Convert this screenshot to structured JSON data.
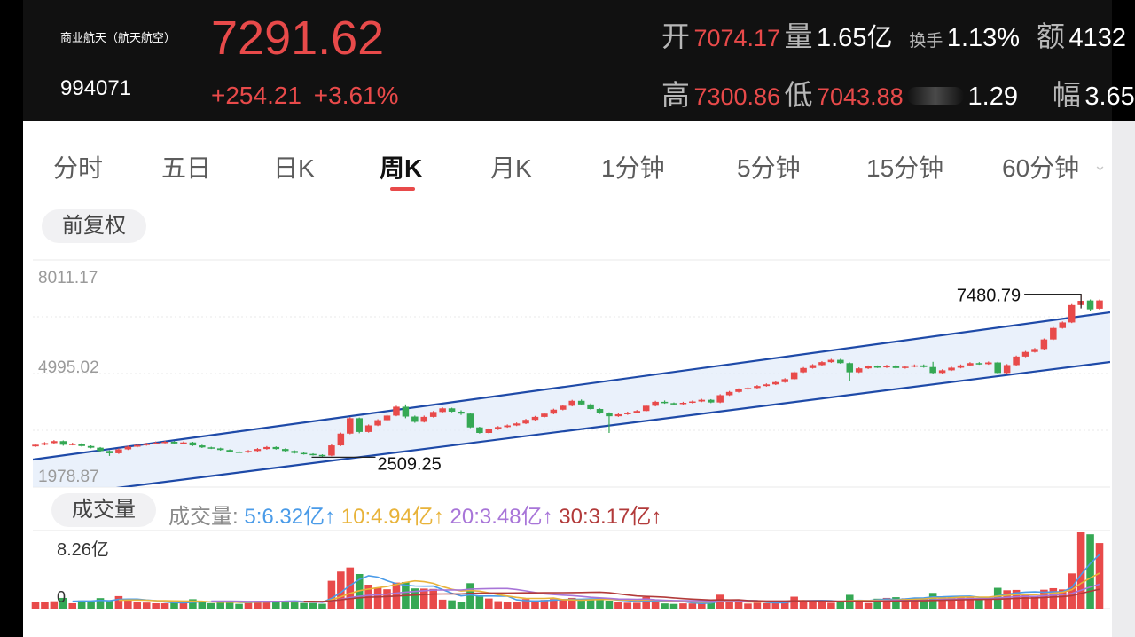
{
  "header": {
    "name": "商业航天（航天航空）",
    "code": "994071",
    "price": "7291.62",
    "change": "+254.21",
    "change_pct": "+3.61%",
    "open_label": "开",
    "open": "7074.17",
    "volume_label": "量",
    "volume": "1.65亿",
    "turnover_label": "换手",
    "turnover": "1.13%",
    "amount_label": "额",
    "amount": "4132",
    "high_label": "高",
    "high": "7300.86",
    "low_label": "低",
    "low": "7043.88",
    "ratio": "1.29",
    "amplitude_label": "幅",
    "amplitude": "3.65"
  },
  "tabs": [
    {
      "label": "分时",
      "active": false
    },
    {
      "label": "五日",
      "active": false
    },
    {
      "label": "日K",
      "active": false
    },
    {
      "label": "周K",
      "active": true
    },
    {
      "label": "月K",
      "active": false
    },
    {
      "label": "1分钟",
      "active": false
    },
    {
      "label": "5分钟",
      "active": false
    },
    {
      "label": "15分钟",
      "active": false
    },
    {
      "label": "60分钟",
      "active": false
    }
  ],
  "colors": {
    "up": "#e84a4a",
    "down": "#35a854",
    "channel": "#1e4aa8",
    "channel_fill": "#e3ecf9"
  },
  "kline": {
    "adjust_label": "前复权",
    "y_ticks": [
      "8011.17",
      "4995.02",
      "1978.87"
    ],
    "ymin": 1978.87,
    "ymax": 8011.17,
    "annotations": {
      "max_label": "7480.79",
      "min_label": "2509.25"
    },
    "candles": [
      {
        "o": 2840,
        "c": 2890,
        "h": 2920,
        "l": 2820
      },
      {
        "o": 2890,
        "c": 2940,
        "h": 2970,
        "l": 2870
      },
      {
        "o": 2940,
        "c": 3000,
        "h": 3030,
        "l": 2920
      },
      {
        "o": 3000,
        "c": 2890,
        "h": 3020,
        "l": 2860
      },
      {
        "o": 2890,
        "c": 2920,
        "h": 2950,
        "l": 2870
      },
      {
        "o": 2920,
        "c": 2850,
        "h": 2940,
        "l": 2830
      },
      {
        "o": 2850,
        "c": 2800,
        "h": 2870,
        "l": 2780
      },
      {
        "o": 2800,
        "c": 2700,
        "h": 2820,
        "l": 2680
      },
      {
        "o": 2700,
        "c": 2630,
        "h": 2720,
        "l": 2550
      },
      {
        "o": 2630,
        "c": 2750,
        "h": 2780,
        "l": 2610
      },
      {
        "o": 2750,
        "c": 2830,
        "h": 2860,
        "l": 2730
      },
      {
        "o": 2830,
        "c": 2880,
        "h": 2910,
        "l": 2810
      },
      {
        "o": 2880,
        "c": 2920,
        "h": 2950,
        "l": 2860
      },
      {
        "o": 2920,
        "c": 2950,
        "h": 2990,
        "l": 2900
      },
      {
        "o": 2950,
        "c": 2980,
        "h": 3010,
        "l": 2930
      },
      {
        "o": 2980,
        "c": 2930,
        "h": 3000,
        "l": 2910
      },
      {
        "o": 2930,
        "c": 2960,
        "h": 2990,
        "l": 2910
      },
      {
        "o": 2960,
        "c": 2870,
        "h": 2980,
        "l": 2850
      },
      {
        "o": 2870,
        "c": 2810,
        "h": 2890,
        "l": 2790
      },
      {
        "o": 2810,
        "c": 2780,
        "h": 2830,
        "l": 2760
      },
      {
        "o": 2780,
        "c": 2730,
        "h": 2800,
        "l": 2710
      },
      {
        "o": 2730,
        "c": 2680,
        "h": 2750,
        "l": 2660
      },
      {
        "o": 2680,
        "c": 2660,
        "h": 2700,
        "l": 2640
      },
      {
        "o": 2660,
        "c": 2700,
        "h": 2730,
        "l": 2640
      },
      {
        "o": 2700,
        "c": 2760,
        "h": 2790,
        "l": 2680
      },
      {
        "o": 2760,
        "c": 2820,
        "h": 2850,
        "l": 2740
      },
      {
        "o": 2820,
        "c": 2760,
        "h": 2840,
        "l": 2740
      },
      {
        "o": 2760,
        "c": 2700,
        "h": 2780,
        "l": 2680
      },
      {
        "o": 2700,
        "c": 2640,
        "h": 2720,
        "l": 2620
      },
      {
        "o": 2640,
        "c": 2610,
        "h": 2660,
        "l": 2590
      },
      {
        "o": 2610,
        "c": 2580,
        "h": 2630,
        "l": 2560
      },
      {
        "o": 2580,
        "c": 2560,
        "h": 2600,
        "l": 2509.25
      },
      {
        "o": 2560,
        "c": 2870,
        "h": 2900,
        "l": 2540
      },
      {
        "o": 2870,
        "c": 3230,
        "h": 3260,
        "l": 2850
      },
      {
        "o": 3230,
        "c": 3700,
        "h": 3730,
        "l": 3210
      },
      {
        "o": 3700,
        "c": 3280,
        "h": 3720,
        "l": 3240
      },
      {
        "o": 3280,
        "c": 3480,
        "h": 3510,
        "l": 3260
      },
      {
        "o": 3480,
        "c": 3640,
        "h": 3670,
        "l": 3460
      },
      {
        "o": 3640,
        "c": 3780,
        "h": 3810,
        "l": 3620
      },
      {
        "o": 3780,
        "c": 4050,
        "h": 4080,
        "l": 3760
      },
      {
        "o": 4050,
        "c": 3750,
        "h": 4120,
        "l": 3700
      },
      {
        "o": 3750,
        "c": 3590,
        "h": 3780,
        "l": 3560
      },
      {
        "o": 3590,
        "c": 3740,
        "h": 3780,
        "l": 3570
      },
      {
        "o": 3740,
        "c": 3890,
        "h": 3920,
        "l": 3720
      },
      {
        "o": 3890,
        "c": 4000,
        "h": 4030,
        "l": 3870
      },
      {
        "o": 4000,
        "c": 3900,
        "h": 4020,
        "l": 3880
      },
      {
        "o": 3900,
        "c": 3840,
        "h": 3940,
        "l": 3800
      },
      {
        "o": 3840,
        "c": 3420,
        "h": 3860,
        "l": 3400
      },
      {
        "o": 3420,
        "c": 3250,
        "h": 3440,
        "l": 3230
      },
      {
        "o": 3250,
        "c": 3360,
        "h": 3390,
        "l": 3230
      },
      {
        "o": 3360,
        "c": 3430,
        "h": 3460,
        "l": 3340
      },
      {
        "o": 3430,
        "c": 3480,
        "h": 3510,
        "l": 3410
      },
      {
        "o": 3480,
        "c": 3540,
        "h": 3570,
        "l": 3460
      },
      {
        "o": 3540,
        "c": 3650,
        "h": 3680,
        "l": 3520
      },
      {
        "o": 3650,
        "c": 3740,
        "h": 3770,
        "l": 3630
      },
      {
        "o": 3740,
        "c": 3840,
        "h": 3870,
        "l": 3720
      },
      {
        "o": 3840,
        "c": 3960,
        "h": 3990,
        "l": 3820
      },
      {
        "o": 3960,
        "c": 4080,
        "h": 4110,
        "l": 3940
      },
      {
        "o": 4080,
        "c": 4230,
        "h": 4260,
        "l": 4060
      },
      {
        "o": 4230,
        "c": 4120,
        "h": 4270,
        "l": 4100
      },
      {
        "o": 4120,
        "c": 3980,
        "h": 4150,
        "l": 3960
      },
      {
        "o": 3980,
        "c": 3850,
        "h": 4000,
        "l": 3830
      },
      {
        "o": 3850,
        "c": 3760,
        "h": 3880,
        "l": 3250
      },
      {
        "o": 3760,
        "c": 3820,
        "h": 3850,
        "l": 3740
      },
      {
        "o": 3820,
        "c": 3870,
        "h": 3900,
        "l": 3800
      },
      {
        "o": 3870,
        "c": 3920,
        "h": 3950,
        "l": 3850
      },
      {
        "o": 3920,
        "c": 4080,
        "h": 4110,
        "l": 3900
      },
      {
        "o": 4080,
        "c": 4200,
        "h": 4230,
        "l": 4060
      },
      {
        "o": 4200,
        "c": 4160,
        "h": 4240,
        "l": 4140
      },
      {
        "o": 4160,
        "c": 4130,
        "h": 4180,
        "l": 4110
      },
      {
        "o": 4130,
        "c": 4170,
        "h": 4200,
        "l": 4110
      },
      {
        "o": 4170,
        "c": 4210,
        "h": 4240,
        "l": 4150
      },
      {
        "o": 4210,
        "c": 4260,
        "h": 4290,
        "l": 4190
      },
      {
        "o": 4260,
        "c": 4180,
        "h": 4280,
        "l": 4160
      },
      {
        "o": 4180,
        "c": 4400,
        "h": 4430,
        "l": 4160
      },
      {
        "o": 4400,
        "c": 4500,
        "h": 4530,
        "l": 4380
      },
      {
        "o": 4500,
        "c": 4580,
        "h": 4610,
        "l": 4480
      },
      {
        "o": 4580,
        "c": 4620,
        "h": 4650,
        "l": 4560
      },
      {
        "o": 4620,
        "c": 4680,
        "h": 4710,
        "l": 4600
      },
      {
        "o": 4680,
        "c": 4730,
        "h": 4760,
        "l": 4660
      },
      {
        "o": 4730,
        "c": 4800,
        "h": 4830,
        "l": 4710
      },
      {
        "o": 4800,
        "c": 4890,
        "h": 4920,
        "l": 4780
      },
      {
        "o": 4890,
        "c": 5100,
        "h": 5130,
        "l": 4870
      },
      {
        "o": 5100,
        "c": 5230,
        "h": 5260,
        "l": 5080
      },
      {
        "o": 5230,
        "c": 5320,
        "h": 5350,
        "l": 5210
      },
      {
        "o": 5320,
        "c": 5410,
        "h": 5440,
        "l": 5300
      },
      {
        "o": 5410,
        "c": 5480,
        "h": 5510,
        "l": 5390
      },
      {
        "o": 5480,
        "c": 5380,
        "h": 5510,
        "l": 5360
      },
      {
        "o": 5380,
        "c": 5100,
        "h": 5400,
        "l": 4830
      },
      {
        "o": 5100,
        "c": 5220,
        "h": 5250,
        "l": 5080
      },
      {
        "o": 5220,
        "c": 5280,
        "h": 5310,
        "l": 5200
      },
      {
        "o": 5280,
        "c": 5250,
        "h": 5310,
        "l": 5230
      },
      {
        "o": 5250,
        "c": 5300,
        "h": 5330,
        "l": 5230
      },
      {
        "o": 5300,
        "c": 5230,
        "h": 5330,
        "l": 5210
      },
      {
        "o": 5230,
        "c": 5270,
        "h": 5300,
        "l": 5210
      },
      {
        "o": 5270,
        "c": 5310,
        "h": 5340,
        "l": 5250
      },
      {
        "o": 5310,
        "c": 5260,
        "h": 5340,
        "l": 5240
      },
      {
        "o": 5260,
        "c": 5080,
        "h": 5420,
        "l": 5060
      },
      {
        "o": 5080,
        "c": 5160,
        "h": 5190,
        "l": 5060
      },
      {
        "o": 5160,
        "c": 5240,
        "h": 5270,
        "l": 5140
      },
      {
        "o": 5240,
        "c": 5310,
        "h": 5340,
        "l": 5220
      },
      {
        "o": 5310,
        "c": 5380,
        "h": 5410,
        "l": 5290
      },
      {
        "o": 5380,
        "c": 5350,
        "h": 5410,
        "l": 5330
      },
      {
        "o": 5350,
        "c": 5400,
        "h": 5430,
        "l": 5330
      },
      {
        "o": 5400,
        "c": 5080,
        "h": 5420,
        "l": 5060
      },
      {
        "o": 5080,
        "c": 5320,
        "h": 5350,
        "l": 5060
      },
      {
        "o": 5320,
        "c": 5580,
        "h": 5610,
        "l": 5300
      },
      {
        "o": 5580,
        "c": 5720,
        "h": 5750,
        "l": 5560
      },
      {
        "o": 5720,
        "c": 5810,
        "h": 5840,
        "l": 5700
      },
      {
        "o": 5810,
        "c": 6100,
        "h": 6130,
        "l": 5790
      },
      {
        "o": 6100,
        "c": 6450,
        "h": 6480,
        "l": 6080
      },
      {
        "o": 6450,
        "c": 6620,
        "h": 6650,
        "l": 6430
      },
      {
        "o": 6620,
        "c": 7150,
        "h": 7180,
        "l": 6600
      },
      {
        "o": 7150,
        "c": 7280,
        "h": 7480.79,
        "l": 7080
      },
      {
        "o": 7290,
        "c": 7020,
        "h": 7320,
        "l": 6980
      },
      {
        "o": 7040,
        "c": 7291.62,
        "h": 7320,
        "l": 7010
      }
    ]
  },
  "volume": {
    "pill_label": "成交量",
    "legend_label": "成交量:",
    "ma5": "5:6.32亿",
    "ma10": "10:4.94亿",
    "ma20": "20:3.48亿",
    "ma30": "30:3.17亿",
    "arrow": "↑",
    "y_ticks": [
      "8.26亿",
      "0"
    ],
    "max": 8.26
  }
}
